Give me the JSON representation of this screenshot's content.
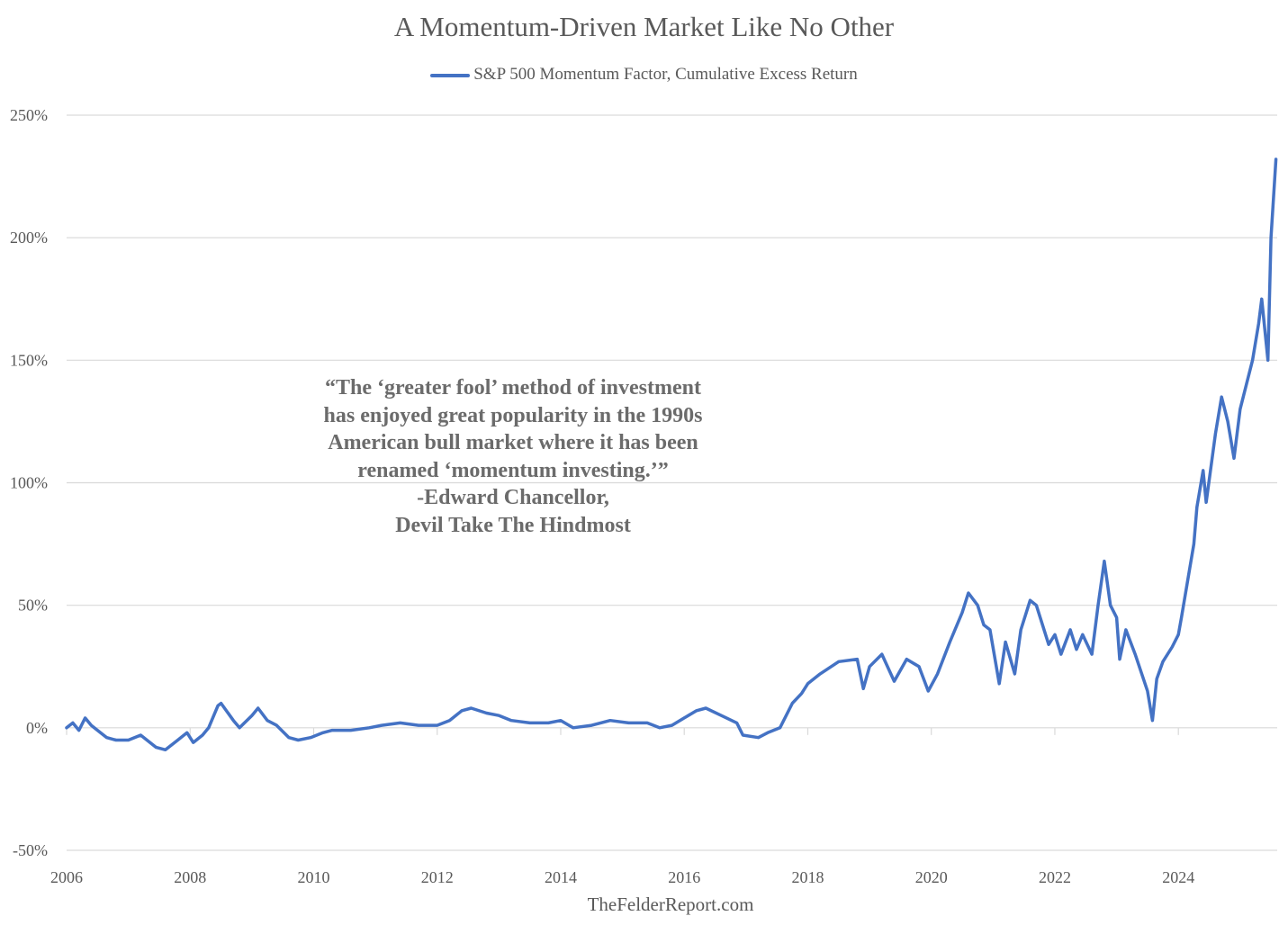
{
  "chart_data": {
    "type": "line",
    "title": "A Momentum-Driven Market Like No Other",
    "legend": {
      "placement": "top-center"
    },
    "xlabel": "",
    "ylabel": "",
    "xlim": [
      2006.0,
      2025.6
    ],
    "ylim": [
      -50,
      250
    ],
    "x_ticks": [
      2006,
      2008,
      2010,
      2012,
      2014,
      2016,
      2018,
      2020,
      2022,
      2024
    ],
    "x_tick_labels": [
      "2006",
      "2008",
      "2010",
      "2012",
      "2014",
      "2016",
      "2018",
      "2020",
      "2022",
      "2024"
    ],
    "y_ticks": [
      -50,
      0,
      50,
      100,
      150,
      200,
      250
    ],
    "y_tick_labels": [
      "-50%",
      "0%",
      "50%",
      "100%",
      "150%",
      "200%",
      "250%"
    ],
    "grid": true,
    "series": [
      {
        "name": "S&P 500 Momentum Factor, Cumulative Excess Return",
        "color": "#4472c4",
        "x": [
          2006.0,
          2006.1,
          2006.2,
          2006.3,
          2006.4,
          2006.5,
          2006.65,
          2006.8,
          2007.0,
          2007.2,
          2007.45,
          2007.6,
          2007.8,
          2007.95,
          2008.05,
          2008.2,
          2008.3,
          2008.45,
          2008.5,
          2008.7,
          2008.8,
          2009.0,
          2009.1,
          2009.25,
          2009.4,
          2009.6,
          2009.75,
          2009.95,
          2010.15,
          2010.3,
          2010.6,
          2010.9,
          2011.1,
          2011.4,
          2011.7,
          2012.0,
          2012.2,
          2012.4,
          2012.55,
          2012.8,
          2013.0,
          2013.2,
          2013.5,
          2013.8,
          2014.0,
          2014.2,
          2014.5,
          2014.8,
          2015.1,
          2015.4,
          2015.6,
          2015.8,
          2016.0,
          2016.2,
          2016.35,
          2016.6,
          2016.85,
          2016.95,
          2017.2,
          2017.35,
          2017.55,
          2017.75,
          2017.9,
          2018.0,
          2018.2,
          2018.5,
          2018.8,
          2018.9,
          2019.0,
          2019.2,
          2019.4,
          2019.6,
          2019.8,
          2019.95,
          2020.1,
          2020.3,
          2020.5,
          2020.6,
          2020.75,
          2020.85,
          2020.95,
          2021.1,
          2021.2,
          2021.35,
          2021.45,
          2021.6,
          2021.7,
          2021.9,
          2022.0,
          2022.1,
          2022.25,
          2022.35,
          2022.45,
          2022.6,
          2022.7,
          2022.8,
          2022.9,
          2023.0,
          2023.05,
          2023.15,
          2023.3,
          2023.5,
          2023.58,
          2023.65,
          2023.75,
          2023.9,
          2024.0,
          2024.05,
          2024.15,
          2024.25,
          2024.3,
          2024.4,
          2024.45,
          2024.6,
          2024.7,
          2024.8,
          2024.9,
          2025.0,
          2025.1,
          2025.2,
          2025.3,
          2025.35,
          2025.45,
          2025.5,
          2025.58
        ],
        "y": [
          0,
          2,
          -1,
          4,
          1,
          -1,
          -4,
          -5,
          -5,
          -3,
          -8,
          -9,
          -5,
          -2,
          -6,
          -3,
          0,
          9,
          10,
          3,
          0,
          5,
          8,
          3,
          1,
          -4,
          -5,
          -4,
          -2,
          -1,
          -1,
          0,
          1,
          2,
          1,
          1,
          3,
          7,
          8,
          6,
          5,
          3,
          2,
          2,
          3,
          0,
          1,
          3,
          2,
          2,
          0,
          1,
          4,
          7,
          8,
          5,
          2,
          -3,
          -4,
          -2,
          0,
          10,
          14,
          18,
          22,
          27,
          28,
          16,
          25,
          30,
          19,
          28,
          25,
          15,
          22,
          35,
          47,
          55,
          50,
          42,
          40,
          18,
          35,
          22,
          40,
          52,
          50,
          34,
          38,
          30,
          40,
          32,
          38,
          30,
          50,
          68,
          50,
          45,
          28,
          40,
          30,
          15,
          3,
          20,
          27,
          33,
          38,
          45,
          60,
          75,
          90,
          105,
          92,
          120,
          135,
          125,
          110,
          130,
          140,
          150,
          165,
          175,
          150,
          200,
          232
        ]
      }
    ]
  },
  "source_credit": "TheFelderReport.com",
  "annotation_lines": [
    "“The ‘greater fool’ method of investment",
    "has enjoyed great popularity in the 1990s",
    "American bull market where it has been",
    "renamed ‘momentum investing.’”",
    "-Edward Chancellor,",
    "Devil Take The Hindmost"
  ]
}
